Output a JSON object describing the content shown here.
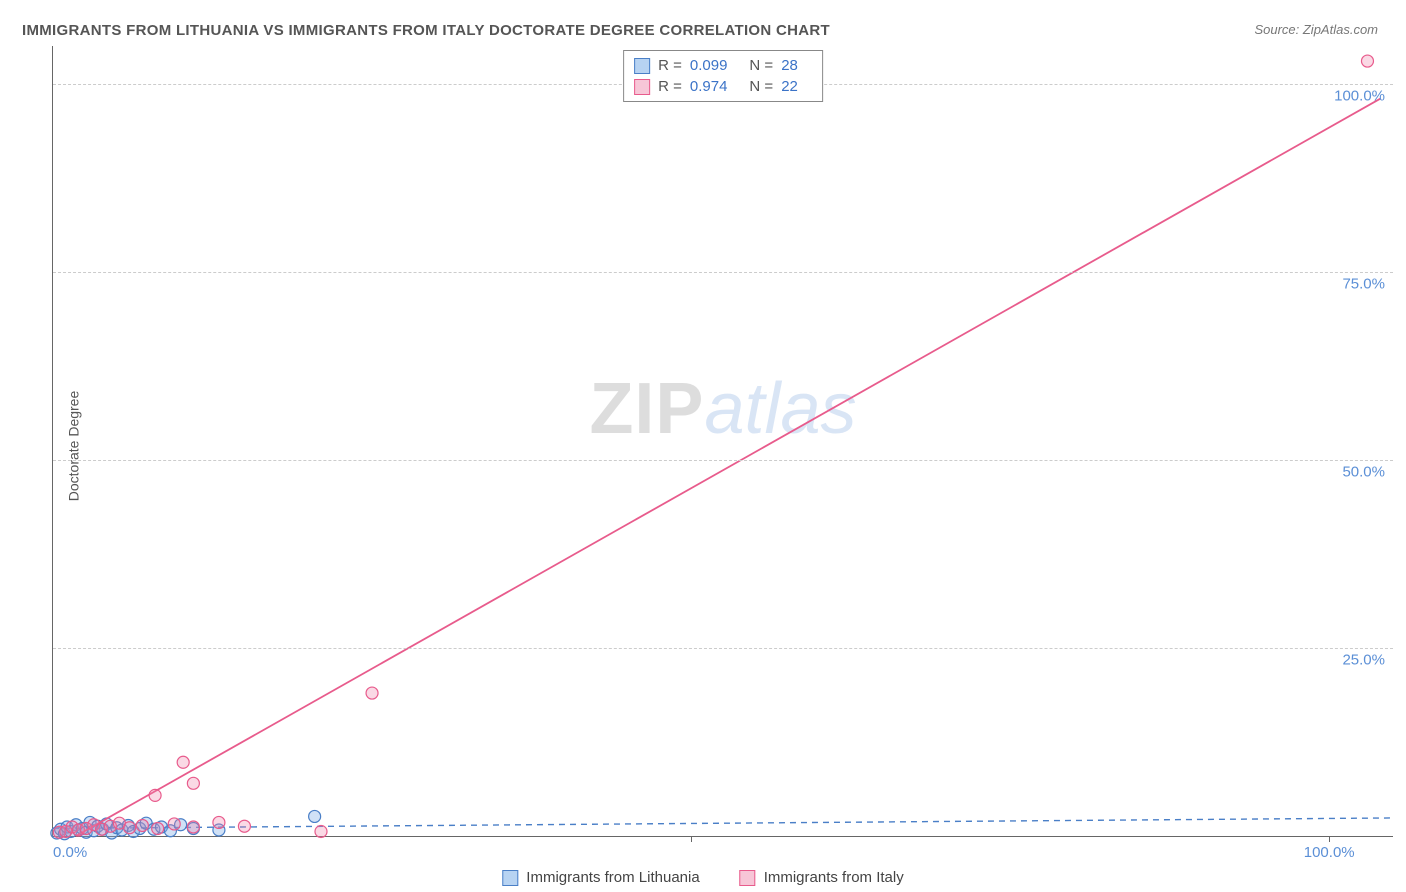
{
  "title": "IMMIGRANTS FROM LITHUANIA VS IMMIGRANTS FROM ITALY DOCTORATE DEGREE CORRELATION CHART",
  "source": "Source: ZipAtlas.com",
  "ylabel": "Doctorate Degree",
  "watermark": {
    "part1": "ZIP",
    "part2": "atlas"
  },
  "chart": {
    "type": "scatter",
    "xlim": [
      0,
      105
    ],
    "ylim": [
      0,
      105
    ],
    "background_color": "#ffffff",
    "grid_color": "#cccccc",
    "axis_color": "#666666",
    "tick_label_color": "#5b8fd6",
    "tick_fontsize": 15,
    "y_ticks": [
      25,
      50,
      75,
      100
    ],
    "y_tick_labels": [
      "25.0%",
      "50.0%",
      "75.0%",
      "100.0%"
    ],
    "x_ticks": [
      0,
      50,
      100
    ],
    "x_tick_labels": [
      "0.0%",
      "",
      "100.0%"
    ],
    "series": [
      {
        "name": "Immigrants from Lithuania",
        "color_fill": "rgba(120,170,230,0.35)",
        "color_stroke": "#4a7fc7",
        "swatch_fill": "#b7d3f2",
        "swatch_border": "#4a7fc7",
        "marker_radius": 6,
        "R": "0.099",
        "N": "28",
        "trend": {
          "x1": 0,
          "y1": 1.0,
          "x2": 105,
          "y2": 2.4,
          "dash": "6,5",
          "width": 1.4
        },
        "points": [
          {
            "x": 0.3,
            "y": 0.4
          },
          {
            "x": 0.6,
            "y": 0.9
          },
          {
            "x": 0.9,
            "y": 0.3
          },
          {
            "x": 1.1,
            "y": 1.2
          },
          {
            "x": 1.4,
            "y": 0.6
          },
          {
            "x": 1.8,
            "y": 1.5
          },
          {
            "x": 2.0,
            "y": 0.8
          },
          {
            "x": 2.3,
            "y": 1.0
          },
          {
            "x": 2.6,
            "y": 0.5
          },
          {
            "x": 2.9,
            "y": 1.8
          },
          {
            "x": 3.2,
            "y": 0.7
          },
          {
            "x": 3.5,
            "y": 1.3
          },
          {
            "x": 3.9,
            "y": 0.9
          },
          {
            "x": 4.2,
            "y": 1.6
          },
          {
            "x": 4.6,
            "y": 0.4
          },
          {
            "x": 5.0,
            "y": 1.1
          },
          {
            "x": 5.4,
            "y": 0.8
          },
          {
            "x": 5.9,
            "y": 1.4
          },
          {
            "x": 6.3,
            "y": 0.6
          },
          {
            "x": 6.8,
            "y": 1.0
          },
          {
            "x": 7.3,
            "y": 1.7
          },
          {
            "x": 7.9,
            "y": 0.9
          },
          {
            "x": 8.5,
            "y": 1.2
          },
          {
            "x": 9.2,
            "y": 0.7
          },
          {
            "x": 10.0,
            "y": 1.5
          },
          {
            "x": 11.0,
            "y": 1.0
          },
          {
            "x": 13.0,
            "y": 0.8
          },
          {
            "x": 20.5,
            "y": 2.6
          }
        ]
      },
      {
        "name": "Immigrants from Italy",
        "color_fill": "rgba(240,130,170,0.30)",
        "color_stroke": "#e85b8c",
        "swatch_fill": "#f7c6d7",
        "swatch_border": "#e85b8c",
        "marker_radius": 6,
        "R": "0.974",
        "N": "22",
        "trend": {
          "x1": 1.8,
          "y1": 0,
          "x2": 104,
          "y2": 98,
          "dash": "none",
          "width": 1.8
        },
        "points": [
          {
            "x": 0.5,
            "y": 0.5
          },
          {
            "x": 1.0,
            "y": 0.6
          },
          {
            "x": 1.5,
            "y": 1.2
          },
          {
            "x": 2.0,
            "y": 0.8
          },
          {
            "x": 2.6,
            "y": 1.0
          },
          {
            "x": 3.2,
            "y": 1.5
          },
          {
            "x": 3.8,
            "y": 0.9
          },
          {
            "x": 4.5,
            "y": 1.3
          },
          {
            "x": 5.2,
            "y": 1.7
          },
          {
            "x": 6.0,
            "y": 1.1
          },
          {
            "x": 7.0,
            "y": 1.4
          },
          {
            "x": 8.2,
            "y": 1.0
          },
          {
            "x": 8.0,
            "y": 5.4
          },
          {
            "x": 9.5,
            "y": 1.6
          },
          {
            "x": 10.2,
            "y": 9.8
          },
          {
            "x": 11.0,
            "y": 1.2
          },
          {
            "x": 11.0,
            "y": 7.0
          },
          {
            "x": 13.0,
            "y": 1.8
          },
          {
            "x": 15.0,
            "y": 1.3
          },
          {
            "x": 21.0,
            "y": 0.6
          },
          {
            "x": 25.0,
            "y": 19.0
          },
          {
            "x": 103.0,
            "y": 103.0
          }
        ]
      }
    ]
  },
  "legend_top": {
    "R_label": "R =",
    "N_label": "N ="
  },
  "legend_bottom_items": [
    "Immigrants from Lithuania",
    "Immigrants from Italy"
  ]
}
